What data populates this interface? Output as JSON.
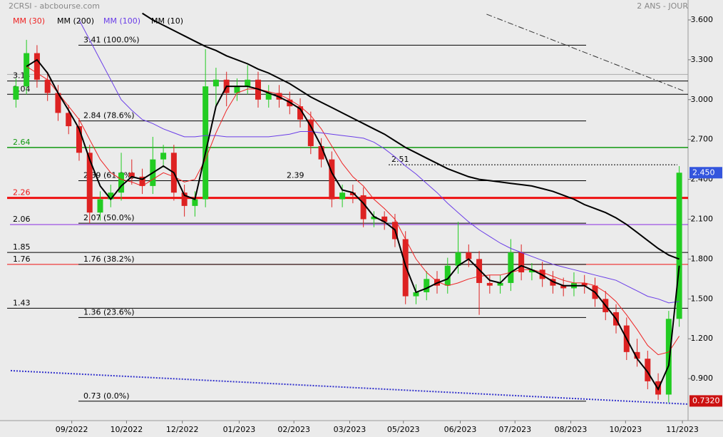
{
  "chart_data": {
    "type": "candlestick",
    "title": "2CRSI - abcbourse.com",
    "subtitle": "2 ANS - JOUR",
    "up_color": "#22cc22",
    "down_color": "#dd2222",
    "ylim": [
      0.584,
      3.75
    ],
    "xlim": [
      0,
      64
    ],
    "yticks": [
      {
        "value": 3.6,
        "label": "3.600"
      },
      {
        "value": 3.3,
        "label": "3.300"
      },
      {
        "value": 3.0,
        "label": "3.000"
      },
      {
        "value": 2.7,
        "label": "2.700"
      },
      {
        "value": 2.4,
        "label": "2.400"
      },
      {
        "value": 2.1,
        "label": "2.100"
      },
      {
        "value": 1.8,
        "label": "1.800"
      },
      {
        "value": 1.5,
        "label": "1.500"
      },
      {
        "value": 1.2,
        "label": "1.200"
      },
      {
        "value": 0.9,
        "label": "0.900"
      }
    ],
    "xticks": [
      {
        "value": 5.8,
        "label": "09/2022"
      },
      {
        "value": 11.0,
        "label": "10/2022"
      },
      {
        "value": 16.3,
        "label": "12/2022"
      },
      {
        "value": 21.7,
        "label": "01/2023"
      },
      {
        "value": 26.9,
        "label": "02/2023"
      },
      {
        "value": 32.2,
        "label": "03/2023"
      },
      {
        "value": 37.3,
        "label": "05/2023"
      },
      {
        "value": 42.7,
        "label": "06/2023"
      },
      {
        "value": 47.9,
        "label": "07/2023"
      },
      {
        "value": 53.2,
        "label": "08/2023"
      },
      {
        "value": 58.4,
        "label": "10/2023"
      },
      {
        "value": 63.8,
        "label": "11/2023"
      }
    ],
    "ohlc": [
      [
        3.0,
        3.16,
        2.94,
        3.1
      ],
      [
        3.1,
        3.45,
        3.04,
        3.35
      ],
      [
        3.35,
        3.41,
        3.09,
        3.15
      ],
      [
        3.15,
        3.21,
        2.99,
        3.05
      ],
      [
        3.05,
        3.11,
        2.84,
        2.9
      ],
      [
        2.9,
        2.96,
        2.74,
        2.8
      ],
      [
        2.8,
        2.86,
        2.54,
        2.6
      ],
      [
        2.6,
        2.66,
        2.07,
        2.15
      ],
      [
        2.15,
        2.31,
        2.09,
        2.25
      ],
      [
        2.25,
        2.36,
        2.19,
        2.3
      ],
      [
        2.3,
        2.6,
        2.24,
        2.45
      ],
      [
        2.45,
        2.55,
        2.36,
        2.42
      ],
      [
        2.42,
        2.48,
        2.29,
        2.35
      ],
      [
        2.35,
        2.72,
        2.29,
        2.55
      ],
      [
        2.55,
        2.66,
        2.49,
        2.6
      ],
      [
        2.6,
        2.66,
        2.24,
        2.3
      ],
      [
        2.3,
        2.36,
        2.12,
        2.2
      ],
      [
        2.2,
        2.31,
        2.12,
        2.25
      ],
      [
        2.25,
        3.38,
        2.19,
        3.1
      ],
      [
        3.1,
        3.24,
        2.95,
        3.15
      ],
      [
        3.15,
        3.21,
        2.95,
        3.05
      ],
      [
        3.05,
        3.16,
        2.99,
        3.1
      ],
      [
        3.1,
        3.26,
        3.04,
        3.15
      ],
      [
        3.15,
        3.21,
        2.94,
        3.0
      ],
      [
        3.0,
        3.11,
        2.94,
        3.05
      ],
      [
        3.05,
        3.11,
        2.94,
        3.0
      ],
      [
        3.0,
        3.06,
        2.89,
        2.95
      ],
      [
        2.95,
        3.01,
        2.79,
        2.85
      ],
      [
        2.85,
        2.91,
        2.59,
        2.65
      ],
      [
        2.65,
        2.71,
        2.49,
        2.55
      ],
      [
        2.55,
        2.61,
        2.19,
        2.25
      ],
      [
        2.25,
        2.36,
        2.19,
        2.3
      ],
      [
        2.3,
        2.36,
        2.22,
        2.28
      ],
      [
        2.28,
        2.34,
        2.04,
        2.1
      ],
      [
        2.1,
        2.16,
        2.04,
        2.12
      ],
      [
        2.12,
        2.16,
        2.02,
        2.08
      ],
      [
        2.08,
        2.14,
        1.89,
        1.95
      ],
      [
        1.95,
        2.01,
        1.46,
        1.52
      ],
      [
        1.52,
        1.61,
        1.46,
        1.55
      ],
      [
        1.55,
        1.71,
        1.49,
        1.65
      ],
      [
        1.65,
        1.71,
        1.54,
        1.6
      ],
      [
        1.6,
        1.81,
        1.54,
        1.75
      ],
      [
        1.75,
        2.08,
        1.69,
        1.85
      ],
      [
        1.85,
        1.91,
        1.74,
        1.8
      ],
      [
        1.8,
        1.86,
        1.38,
        1.62
      ],
      [
        1.62,
        1.68,
        1.54,
        1.6
      ],
      [
        1.6,
        1.68,
        1.54,
        1.62
      ],
      [
        1.62,
        1.95,
        1.56,
        1.85
      ],
      [
        1.85,
        1.91,
        1.64,
        1.7
      ],
      [
        1.7,
        1.77,
        1.64,
        1.72
      ],
      [
        1.72,
        1.78,
        1.59,
        1.65
      ],
      [
        1.65,
        1.71,
        1.54,
        1.6
      ],
      [
        1.6,
        1.66,
        1.52,
        1.58
      ],
      [
        1.58,
        1.7,
        1.52,
        1.62
      ],
      [
        1.62,
        1.68,
        1.54,
        1.6
      ],
      [
        1.6,
        1.66,
        1.44,
        1.5
      ],
      [
        1.5,
        1.56,
        1.34,
        1.4
      ],
      [
        1.4,
        1.46,
        1.24,
        1.3
      ],
      [
        1.3,
        1.36,
        1.04,
        1.1
      ],
      [
        1.1,
        1.2,
        0.99,
        1.05
      ],
      [
        1.05,
        1.11,
        0.82,
        0.88
      ],
      [
        0.88,
        0.94,
        0.74,
        0.78
      ],
      [
        0.78,
        1.41,
        0.72,
        1.35
      ],
      [
        1.35,
        2.5,
        1.29,
        2.45
      ]
    ],
    "series": [
      {
        "name": "MM (30)",
        "color": "#ee2222",
        "width": 1,
        "values": [
          null,
          3.25,
          3.2,
          3.15,
          3.05,
          2.95,
          2.85,
          2.7,
          2.55,
          2.45,
          2.4,
          2.38,
          2.35,
          2.4,
          2.45,
          2.42,
          2.38,
          2.4,
          2.55,
          2.75,
          2.92,
          3.05,
          3.08,
          3.08,
          3.06,
          3.04,
          3.0,
          2.95,
          2.88,
          2.78,
          2.65,
          2.52,
          2.42,
          2.35,
          2.25,
          2.18,
          2.1,
          1.95,
          1.8,
          1.7,
          1.63,
          1.6,
          1.62,
          1.65,
          1.67,
          1.68,
          1.68,
          1.7,
          1.72,
          1.72,
          1.7,
          1.67,
          1.64,
          1.62,
          1.62,
          1.6,
          1.55,
          1.48,
          1.38,
          1.27,
          1.15,
          1.08,
          1.1,
          1.22
        ]
      },
      {
        "name": "MM (200)",
        "color": "#000000",
        "width": 2,
        "values": [
          null,
          null,
          null,
          null,
          null,
          null,
          null,
          null,
          null,
          null,
          null,
          null,
          3.65,
          3.6,
          3.56,
          3.52,
          3.48,
          3.44,
          3.4,
          3.37,
          3.33,
          3.3,
          3.27,
          3.23,
          3.2,
          3.16,
          3.12,
          3.07,
          3.02,
          2.98,
          2.94,
          2.9,
          2.86,
          2.82,
          2.78,
          2.74,
          2.69,
          2.64,
          2.6,
          2.56,
          2.52,
          2.48,
          2.45,
          2.42,
          2.4,
          2.39,
          2.38,
          2.37,
          2.36,
          2.35,
          2.33,
          2.31,
          2.28,
          2.25,
          2.21,
          2.18,
          2.15,
          2.11,
          2.06,
          2.0,
          1.94,
          1.88,
          1.83,
          1.8
        ]
      },
      {
        "name": "MM (100)",
        "color": "#6a3de8",
        "width": 1,
        "values": [
          null,
          null,
          null,
          null,
          null,
          null,
          3.6,
          3.45,
          3.3,
          3.15,
          3.0,
          2.92,
          2.85,
          2.82,
          2.78,
          2.75,
          2.72,
          2.72,
          2.73,
          2.73,
          2.72,
          2.72,
          2.72,
          2.72,
          2.72,
          2.73,
          2.74,
          2.76,
          2.76,
          2.75,
          2.74,
          2.73,
          2.72,
          2.71,
          2.68,
          2.63,
          2.57,
          2.5,
          2.44,
          2.37,
          2.3,
          2.22,
          2.15,
          2.08,
          2.02,
          1.97,
          1.92,
          1.88,
          1.85,
          1.82,
          1.79,
          1.76,
          1.74,
          1.72,
          1.7,
          1.68,
          1.66,
          1.64,
          1.6,
          1.56,
          1.52,
          1.5,
          1.47,
          1.48
        ]
      },
      {
        "name": "MM (10)",
        "color": "#000000",
        "width": 2,
        "values": [
          null,
          3.25,
          3.3,
          3.2,
          3.05,
          2.92,
          2.78,
          2.55,
          2.35,
          2.25,
          2.35,
          2.42,
          2.4,
          2.45,
          2.5,
          2.45,
          2.28,
          2.25,
          2.6,
          2.95,
          3.1,
          3.1,
          3.1,
          3.08,
          3.05,
          3.02,
          2.98,
          2.93,
          2.8,
          2.65,
          2.45,
          2.32,
          2.3,
          2.22,
          2.12,
          2.08,
          2.02,
          1.75,
          1.55,
          1.58,
          1.62,
          1.65,
          1.75,
          1.8,
          1.72,
          1.64,
          1.62,
          1.7,
          1.75,
          1.72,
          1.68,
          1.63,
          1.6,
          1.6,
          1.6,
          1.55,
          1.45,
          1.35,
          1.2,
          1.05,
          0.95,
          0.82,
          1.0,
          1.75
        ]
      }
    ],
    "levels": [
      {
        "value": 3.41,
        "label": "3.41  (100.0%)",
        "color": "#000000"
      },
      {
        "value": 3.19,
        "color": "#aaaaaa"
      },
      {
        "value": 3.14,
        "label": "3.14",
        "color": "#000000"
      },
      {
        "value": 3.04,
        "label": "3.04",
        "color": "#000000"
      },
      {
        "value": 2.84,
        "label": "2.84  (78.6%)",
        "color": "#000000"
      },
      {
        "value": 2.64,
        "label": "2.64",
        "color": "#119911"
      },
      {
        "value": 2.51,
        "label": "2.51",
        "color": "#000000"
      },
      {
        "value": 2.39,
        "label": "2.39  (61.8%)",
        "color": "#000000"
      },
      {
        "value": 2.39,
        "label": "2.39",
        "color": "#000000"
      },
      {
        "value": 2.26,
        "label": "2.26",
        "color": "#ee1111"
      },
      {
        "value": 2.07,
        "label": "2.07  (50.0%)",
        "color": "#000000"
      },
      {
        "value": 2.06,
        "label": "2.06",
        "color": "#8a2be2"
      },
      {
        "value": 1.85,
        "label": "1.85",
        "color": "#000000"
      },
      {
        "value": 1.76,
        "label": "1.76",
        "color": "#ee1111"
      },
      {
        "value": 1.76,
        "label": "1.76  (38.2%)",
        "color": "#000000"
      },
      {
        "value": 1.43,
        "label": "1.43",
        "color": "#000000"
      },
      {
        "value": 1.36,
        "label": "1.36  (23.6%)",
        "color": "#000000"
      },
      {
        "value": 0.73,
        "label": "0.73  (0.0%)",
        "color": "#000000"
      }
    ],
    "trendlines": [
      {
        "from": [
          45.2,
          3.643
        ],
        "to": [
          64,
          3.063
        ],
        "color": "#333333"
      },
      {
        "from": [
          0,
          0.96
        ],
        "to": [
          64.3,
          0.708
        ],
        "color": "#3333cc"
      }
    ],
    "price_tags": [
      {
        "value": 2.45,
        "label": "2.450",
        "color": "#3355dd"
      },
      {
        "value": 0.732,
        "label": "0.7320",
        "color": "#cc1111"
      }
    ]
  }
}
